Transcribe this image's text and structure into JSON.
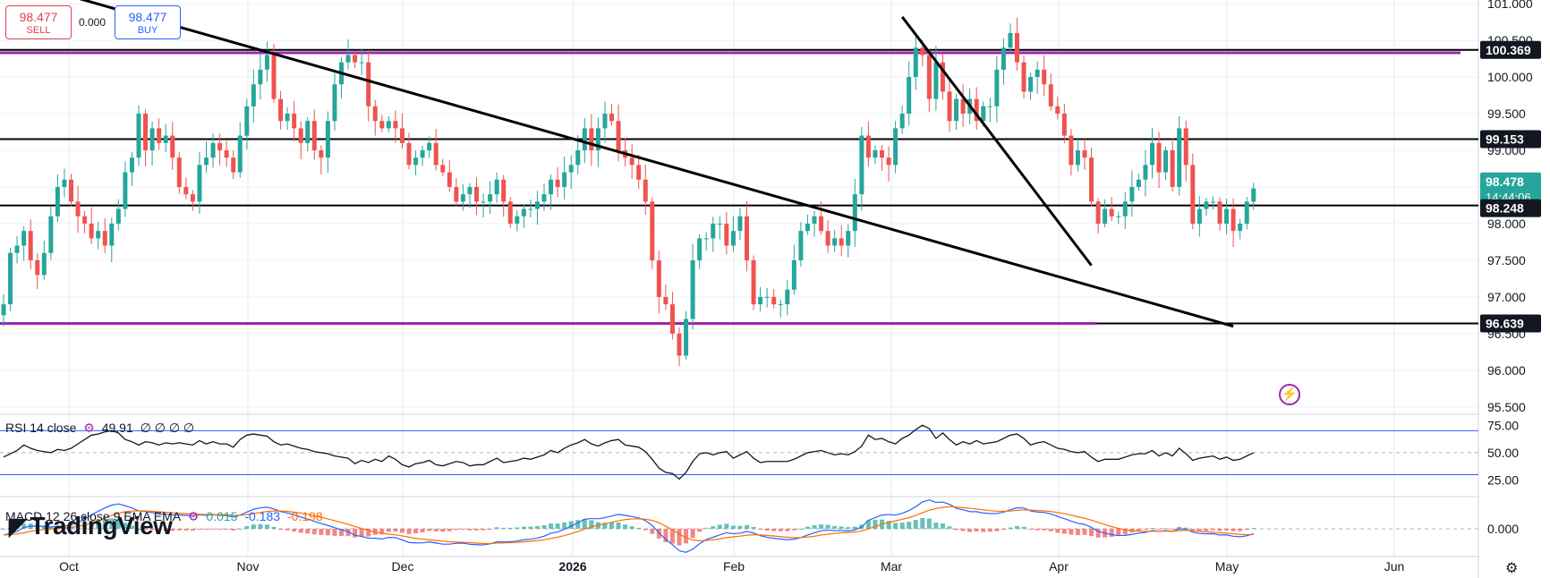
{
  "trade": {
    "sell_price": "98.477",
    "sell_label": "SELL",
    "spread": "0.000",
    "buy_price": "98.477",
    "buy_label": "BUY"
  },
  "rsi_label": {
    "name": "RSI 14 close",
    "value": "49.91",
    "extra": "∅ ∅ ∅ ∅"
  },
  "macd_label": {
    "name": "MACD 12 26 close 9 EMA EMA",
    "hist": "0.015",
    "macd": "-0.183",
    "signal": "-0.198"
  },
  "logo_text": "TradingView",
  "chart_data": {
    "type": "candlestick",
    "price_axis": {
      "ticks": [
        "101.000",
        "100.500",
        "100.000",
        "99.500",
        "99.000",
        "98.500",
        "98.000",
        "97.500",
        "97.000",
        "96.500",
        "96.000",
        "95.500"
      ],
      "range": [
        95.4,
        101.05
      ]
    },
    "time_axis": {
      "labels": [
        "Oct",
        "Nov",
        "Dec",
        "2026",
        "Feb",
        "Mar",
        "Apr",
        "May",
        "Jun"
      ],
      "bold": [
        "2026"
      ]
    },
    "price_labels": [
      {
        "text": "100.369",
        "bg": "#131722",
        "fg": "#ffffff"
      },
      {
        "text": "99.153",
        "bg": "#131722",
        "fg": "#ffffff"
      },
      {
        "text": "98.478",
        "sub": "14:44:06",
        "bg": "#26a69a",
        "fg": "#ffffff"
      },
      {
        "text": "98.248",
        "bg": "#131722",
        "fg": "#ffffff"
      },
      {
        "text": "96.639",
        "bg": "#131722",
        "fg": "#ffffff"
      }
    ],
    "horizontal_levels": [
      {
        "price": 100.369,
        "color": "#000000"
      },
      {
        "price": 100.33,
        "color": "#9c27b0"
      },
      {
        "price": 99.153,
        "color": "#000000"
      },
      {
        "price": 98.248,
        "color": "#000000"
      },
      {
        "price": 96.639,
        "color": "#000000"
      },
      {
        "price": 96.639,
        "color": "#9c27b0"
      }
    ],
    "trendlines": [
      {
        "start": [
          10,
          101.1
        ],
        "end": [
          182,
          96.6
        ]
      },
      {
        "start": [
          133,
          100.82
        ],
        "end": [
          161,
          97.43
        ]
      }
    ],
    "closes": [
      96.9,
      97.6,
      97.7,
      97.9,
      97.5,
      97.3,
      97.6,
      98.1,
      98.5,
      98.6,
      98.3,
      98.1,
      98.0,
      97.8,
      97.9,
      97.7,
      98.0,
      98.2,
      98.7,
      98.9,
      99.5,
      99.0,
      99.3,
      99.1,
      99.2,
      98.9,
      98.5,
      98.4,
      98.3,
      98.8,
      98.9,
      99.1,
      99.0,
      98.9,
      98.7,
      99.2,
      99.6,
      99.9,
      100.1,
      100.3,
      99.7,
      99.4,
      99.5,
      99.3,
      99.1,
      99.4,
      99.0,
      98.9,
      99.4,
      99.9,
      100.2,
      100.3,
      100.2,
      100.2,
      99.6,
      99.4,
      99.3,
      99.4,
      99.3,
      99.1,
      98.8,
      98.9,
      99.0,
      99.1,
      98.8,
      98.7,
      98.5,
      98.3,
      98.4,
      98.5,
      98.3,
      98.3,
      98.4,
      98.6,
      98.3,
      98.0,
      98.1,
      98.2,
      98.2,
      98.3,
      98.4,
      98.6,
      98.5,
      98.7,
      98.8,
      99.0,
      99.3,
      99.0,
      99.3,
      99.5,
      99.4,
      99.0,
      98.9,
      98.8,
      98.6,
      98.3,
      97.5,
      97.0,
      96.9,
      96.5,
      96.2,
      96.7,
      97.5,
      97.8,
      97.8,
      98.0,
      98.0,
      97.7,
      97.9,
      98.1,
      97.5,
      96.9,
      97.0,
      97.0,
      96.9,
      96.9,
      97.1,
      97.5,
      97.9,
      98.0,
      98.1,
      97.9,
      97.7,
      97.8,
      97.7,
      97.9,
      98.4,
      99.2,
      98.9,
      99.0,
      98.9,
      98.8,
      99.3,
      99.5,
      100.0,
      100.4,
      100.3,
      99.7,
      100.2,
      99.8,
      99.4,
      99.7,
      99.5,
      99.7,
      99.4,
      99.6,
      99.6,
      100.1,
      100.4,
      100.6,
      100.2,
      99.8,
      100.0,
      100.1,
      99.9,
      99.6,
      99.5,
      99.2,
      98.8,
      99.0,
      98.9,
      98.3,
      98.0,
      98.2,
      98.1,
      98.1,
      98.3,
      98.5,
      98.6,
      98.8,
      99.1,
      98.7,
      99.0,
      98.5,
      99.3,
      98.8,
      98.0,
      98.2,
      98.3,
      98.3,
      98.0,
      98.2,
      97.9,
      98.0,
      98.3,
      98.48
    ],
    "rsi": {
      "ticks": [
        "75.00",
        "50.00",
        "25.00"
      ],
      "levels": [
        70,
        30
      ],
      "values": [
        46,
        49,
        52,
        57,
        54,
        52,
        51,
        50,
        53,
        52,
        54,
        58,
        62,
        66,
        67,
        69,
        70,
        68,
        62,
        60,
        57,
        60,
        59,
        57,
        59,
        58,
        59,
        58,
        57,
        61,
        58,
        60,
        58,
        58,
        55,
        62,
        66,
        67,
        66,
        65,
        60,
        57,
        58,
        56,
        54,
        53,
        51,
        50,
        49,
        47,
        46,
        45,
        40,
        43,
        41,
        44,
        42,
        47,
        44,
        39,
        37,
        40,
        41,
        43,
        39,
        38,
        40,
        42,
        41,
        38,
        39,
        39,
        42,
        45,
        41,
        42,
        43,
        45,
        44,
        46,
        48,
        52,
        50,
        54,
        57,
        59,
        62,
        58,
        56,
        59,
        61,
        62,
        57,
        56,
        55,
        51,
        44,
        36,
        32,
        31,
        26,
        32,
        42,
        49,
        50,
        48,
        50,
        51,
        45,
        48,
        51,
        45,
        41,
        42,
        42,
        42,
        42,
        44,
        47,
        50,
        51,
        52,
        50,
        48,
        49,
        48,
        51,
        56,
        66,
        62,
        63,
        60,
        58,
        63,
        66,
        71,
        75,
        72,
        63,
        68,
        62,
        57,
        60,
        58,
        61,
        58,
        59,
        60,
        63,
        66,
        67,
        63,
        57,
        59,
        60,
        57,
        54,
        53,
        51,
        50,
        51,
        46,
        42,
        44,
        44,
        44,
        46,
        48,
        49,
        49,
        52,
        47,
        50,
        47,
        54,
        49,
        43,
        45,
        46,
        47,
        44,
        46,
        43,
        44,
        47,
        50
      ]
    },
    "macd": {
      "ticks": [
        "0.000"
      ],
      "range": [
        -0.82,
        0.95
      ]
    }
  }
}
